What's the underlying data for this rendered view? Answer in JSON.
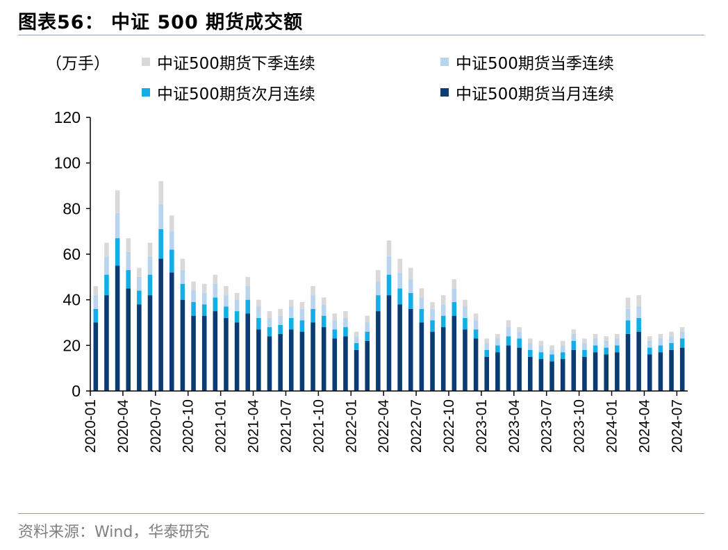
{
  "header": {
    "title": "图表56：  中证 500 期货成交额"
  },
  "footer": {
    "source": "资料来源：Wind，华泰研究"
  },
  "colors": {
    "next_season": "#d9d9d9",
    "current_season": "#b8d4ee",
    "next_month": "#13aee6",
    "current_month": "#0b3b73"
  },
  "chart_data": {
    "type": "bar",
    "stacked": true,
    "unit_label": "（万手）",
    "ylim": [
      0,
      120
    ],
    "yticks": [
      0,
      20,
      40,
      60,
      80,
      100,
      120
    ],
    "xticks": [
      "2020-01",
      "2020-04",
      "2020-07",
      "2020-10",
      "2021-01",
      "2021-04",
      "2021-07",
      "2021-10",
      "2022-01",
      "2022-04",
      "2022-07",
      "2022-10",
      "2023-01",
      "2023-04",
      "2023-07",
      "2023-10",
      "2024-01",
      "2024-04",
      "2024-07"
    ],
    "legend": [
      {
        "name": "中证500期货下季连续",
        "color_key": "next_season"
      },
      {
        "name": "中证500期货当季连续",
        "color_key": "current_season"
      },
      {
        "name": "中证500期货次月连续",
        "color_key": "next_month"
      },
      {
        "name": "中证500期货当月连续",
        "color_key": "current_month"
      }
    ],
    "categories": [
      "2020-01",
      "2020-02",
      "2020-03",
      "2020-04",
      "2020-05",
      "2020-06",
      "2020-07",
      "2020-08",
      "2020-09",
      "2020-10",
      "2020-11",
      "2020-12",
      "2021-01",
      "2021-02",
      "2021-03",
      "2021-04",
      "2021-05",
      "2021-06",
      "2021-07",
      "2021-08",
      "2021-09",
      "2021-10",
      "2021-11",
      "2021-12",
      "2022-01",
      "2022-02",
      "2022-03",
      "2022-04",
      "2022-05",
      "2022-06",
      "2022-07",
      "2022-08",
      "2022-09",
      "2022-10",
      "2022-11",
      "2022-12",
      "2023-01",
      "2023-02",
      "2023-03",
      "2023-04",
      "2023-05",
      "2023-06",
      "2023-07",
      "2023-08",
      "2023-09",
      "2023-10",
      "2023-11",
      "2023-12",
      "2024-01",
      "2024-02",
      "2024-03",
      "2024-04",
      "2024-05",
      "2024-06",
      "2024-07"
    ],
    "series": [
      {
        "name": "中证500期货当月连续",
        "values": [
          30,
          42,
          55,
          45,
          38,
          42,
          58,
          52,
          40,
          33,
          33,
          35,
          32,
          30,
          34,
          27,
          24,
          25,
          27,
          26,
          30,
          28,
          23,
          24,
          18,
          22,
          35,
          42,
          38,
          36,
          30,
          26,
          28,
          33,
          27,
          23,
          15,
          17,
          20,
          19,
          15,
          14,
          13,
          14,
          18,
          15,
          17,
          16,
          17,
          25,
          26,
          16,
          17,
          18,
          19
        ]
      },
      {
        "name": "中证500期货次月连续",
        "values": [
          6,
          9,
          12,
          8,
          6,
          9,
          13,
          10,
          7,
          6,
          5,
          6,
          5,
          5,
          6,
          5,
          4,
          4,
          5,
          5,
          6,
          5,
          4,
          4,
          3,
          4,
          7,
          9,
          7,
          7,
          6,
          5,
          5,
          6,
          5,
          4,
          3,
          3,
          4,
          4,
          3,
          3,
          3,
          3,
          4,
          3,
          3,
          3,
          3,
          6,
          6,
          3,
          3,
          3,
          4
        ]
      },
      {
        "name": "中证500期货当季连续",
        "values": [
          6,
          8,
          11,
          8,
          6,
          8,
          11,
          8,
          6,
          5,
          5,
          6,
          5,
          5,
          6,
          5,
          4,
          4,
          5,
          5,
          6,
          5,
          4,
          4,
          3,
          4,
          6,
          8,
          7,
          6,
          5,
          5,
          5,
          6,
          5,
          4,
          3,
          3,
          4,
          3,
          3,
          3,
          2,
          3,
          3,
          3,
          3,
          3,
          3,
          5,
          5,
          3,
          3,
          3,
          3
        ]
      },
      {
        "name": "中证500期货下季连续",
        "values": [
          4,
          6,
          10,
          6,
          4,
          6,
          10,
          7,
          5,
          4,
          4,
          4,
          4,
          3,
          4,
          3,
          3,
          3,
          3,
          3,
          4,
          3,
          3,
          3,
          2,
          3,
          5,
          7,
          6,
          5,
          4,
          3,
          4,
          4,
          3,
          3,
          2,
          2,
          3,
          2,
          2,
          2,
          2,
          2,
          2,
          2,
          2,
          2,
          2,
          5,
          5,
          2,
          2,
          2,
          2
        ]
      }
    ]
  }
}
